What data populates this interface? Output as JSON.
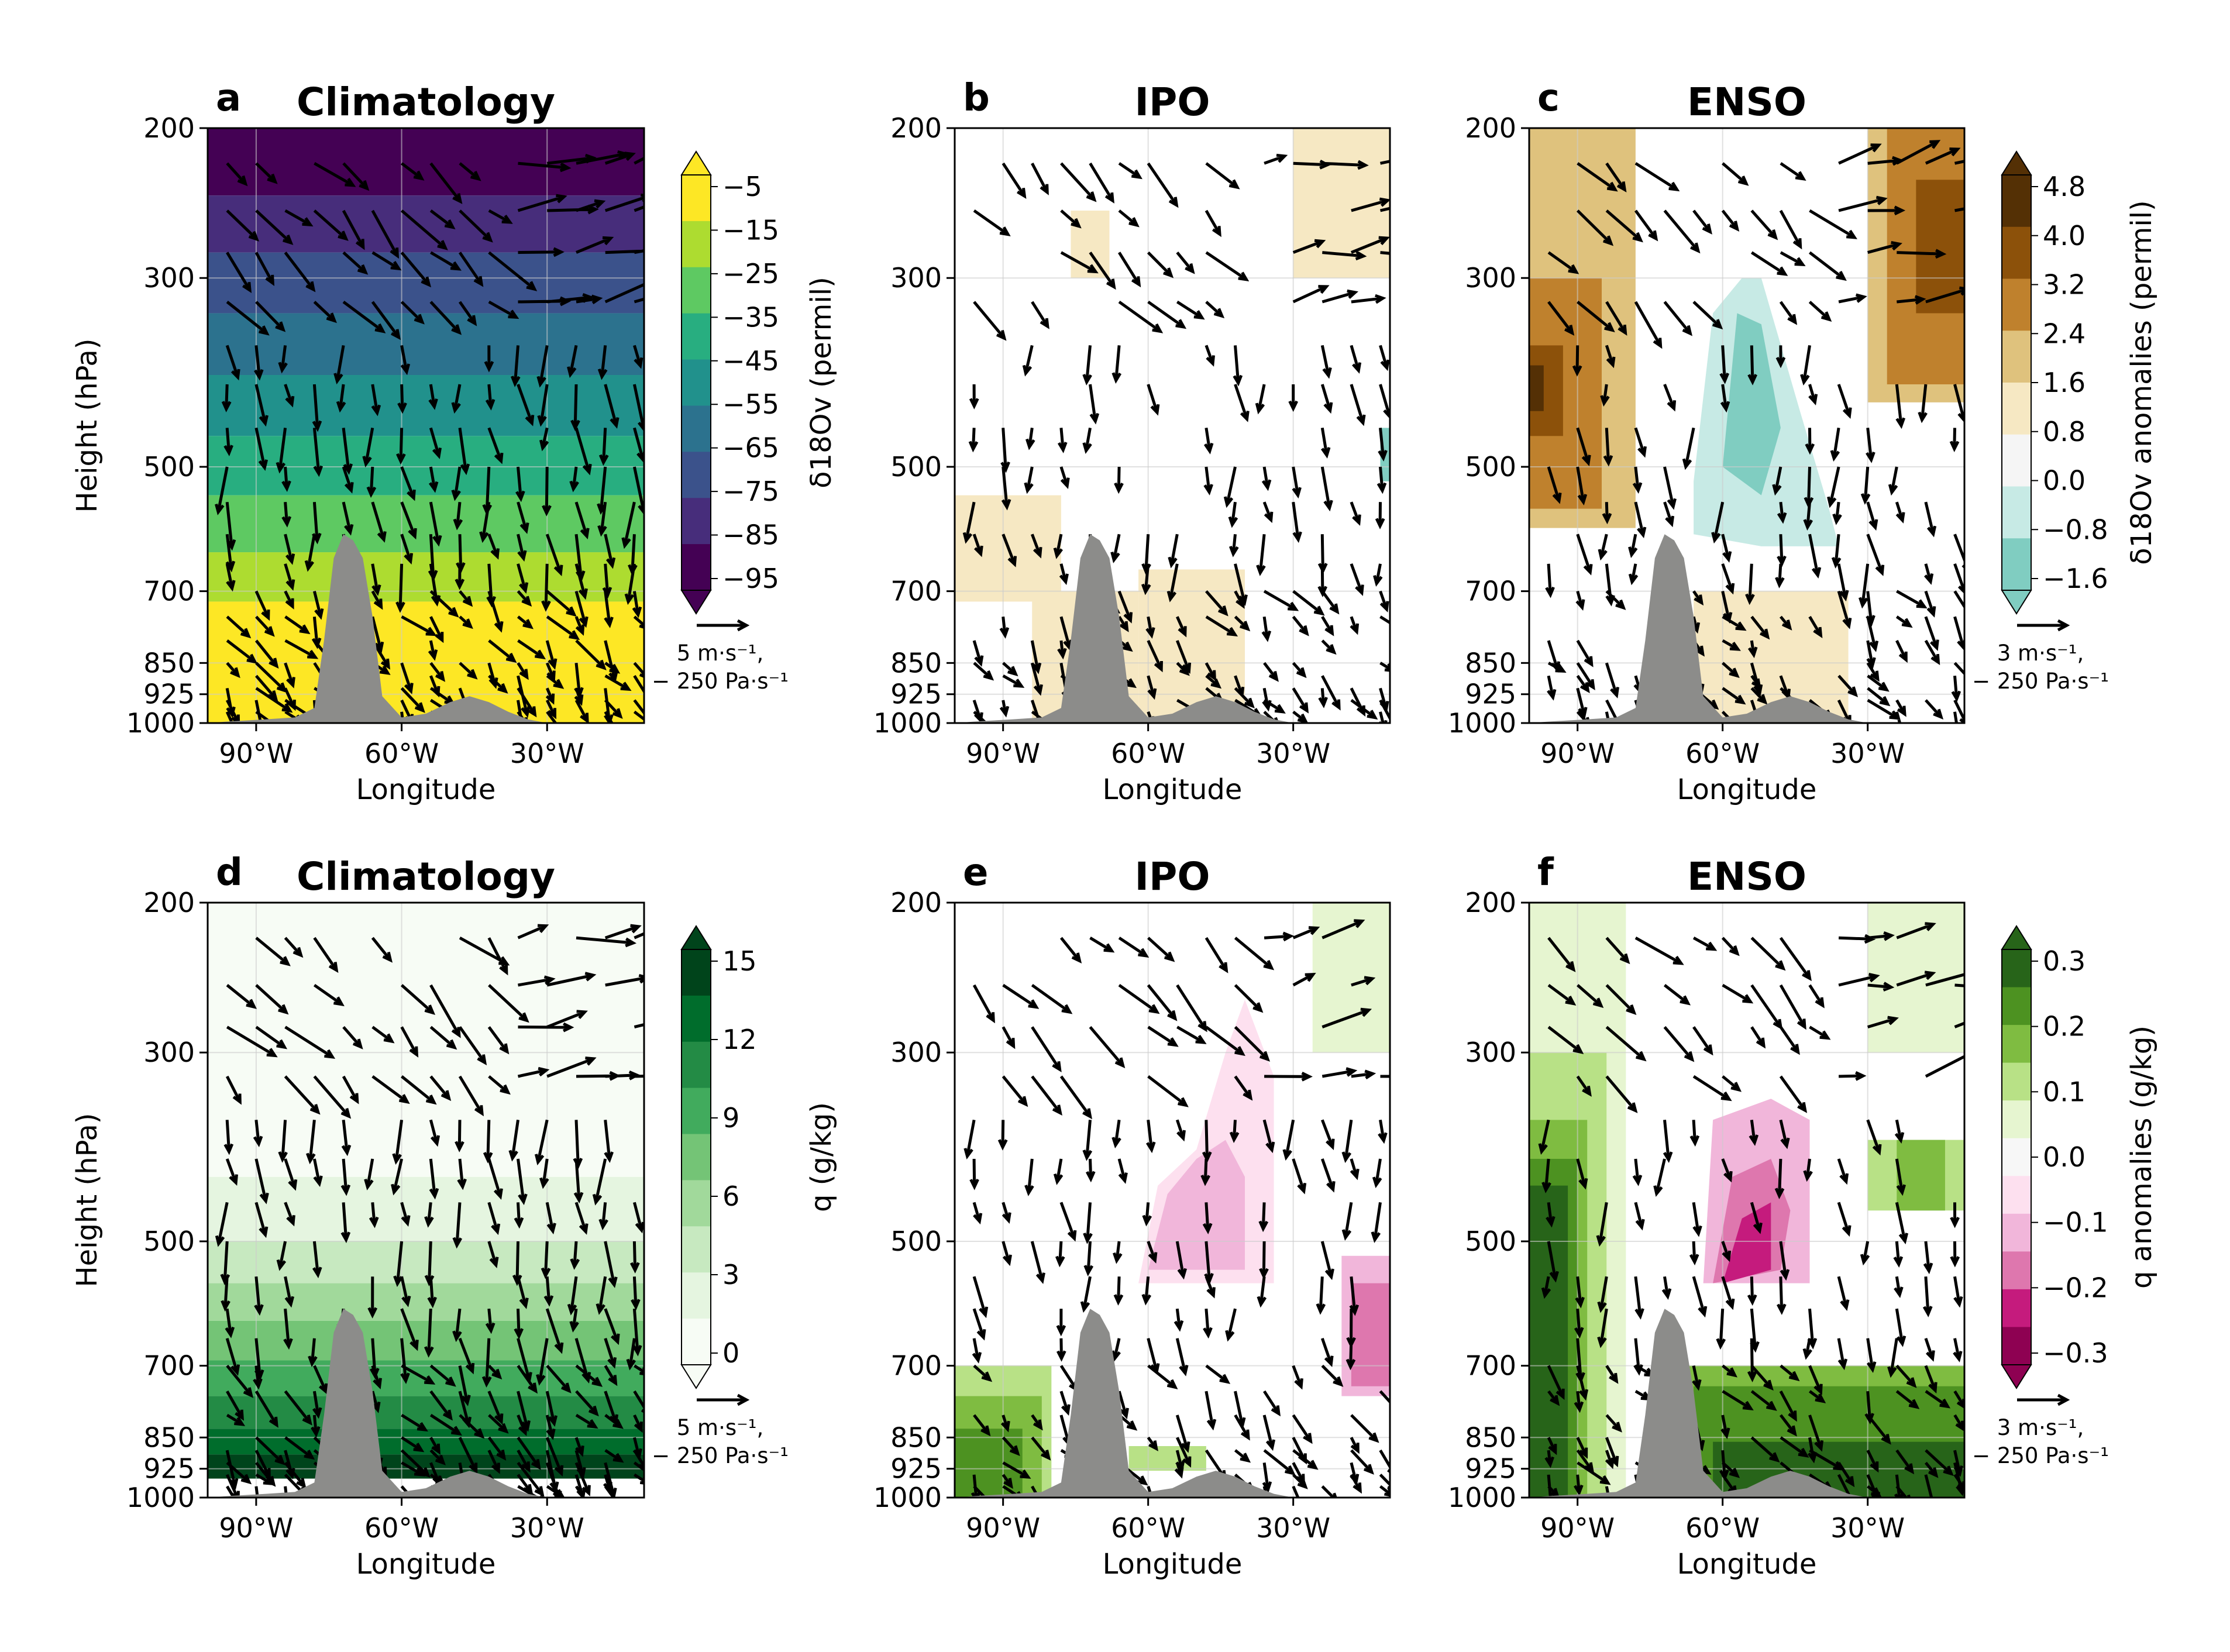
{
  "chart_data": [
    {
      "panel": "a",
      "type": "heatmap",
      "title": "Climatology",
      "xlabel": "Longitude",
      "ylabel": "Height (hPa)",
      "xticks": [
        "90°W",
        "60°W",
        "30°W"
      ],
      "yticks": [
        "200",
        "300",
        "500",
        "700",
        "850",
        "925",
        "1000"
      ],
      "xlim": [
        -100,
        -10
      ],
      "ylim": [
        1000,
        200
      ],
      "colorbar": {
        "label": "δ18Ov (permil)",
        "ticks": [
          "−5",
          "−15",
          "−25",
          "−35",
          "−45",
          "−55",
          "−65",
          "−75",
          "−85",
          "−95"
        ],
        "range": [
          -100,
          0
        ]
      },
      "quiver_key": {
        "line1": "5 m·s⁻¹,",
        "line2": "− 250 Pa·s⁻¹"
      },
      "values_at_1000_to_200_hPa": [
        -8,
        -30,
        -55,
        -95
      ]
    },
    {
      "panel": "b",
      "type": "heatmap",
      "title": "IPO",
      "xlabel": "Longitude",
      "xticks": [
        "90°W",
        "60°W",
        "30°W"
      ],
      "yticks": [
        "200",
        "300",
        "500",
        "700",
        "850",
        "925",
        "1000"
      ],
      "xlim": [
        -100,
        -10
      ],
      "ylim": [
        1000,
        200
      ]
    },
    {
      "panel": "c",
      "type": "heatmap",
      "title": "ENSO",
      "xlabel": "Longitude",
      "xticks": [
        "90°W",
        "60°W",
        "30°W"
      ],
      "yticks": [
        "200",
        "300",
        "500",
        "700",
        "850",
        "925",
        "1000"
      ],
      "xlim": [
        -100,
        -10
      ],
      "ylim": [
        1000,
        200
      ],
      "colorbar": {
        "label": "δ18Ov anomalies (permil)",
        "ticks": [
          "4.8",
          "4.0",
          "3.2",
          "2.4",
          "1.6",
          "0.8",
          "0.0",
          "−0.8",
          "−1.6"
        ],
        "range": [
          -2,
          5.2
        ]
      },
      "quiver_key": {
        "line1": "3 m·s⁻¹,",
        "line2": "− 250 Pa·s⁻¹"
      }
    },
    {
      "panel": "d",
      "type": "heatmap",
      "title": "Climatology",
      "xlabel": "Longitude",
      "ylabel": "Height (hPa)",
      "xticks": [
        "90°W",
        "60°W",
        "30°W"
      ],
      "yticks": [
        "200",
        "300",
        "500",
        "700",
        "850",
        "925",
        "1000"
      ],
      "xlim": [
        -100,
        -10
      ],
      "ylim": [
        1000,
        200
      ],
      "colorbar": {
        "label": "q (g/kg)",
        "ticks": [
          "15",
          "12",
          "9",
          "6",
          "3",
          "0"
        ],
        "range": [
          0,
          16.5
        ]
      },
      "quiver_key": {
        "line1": "5 m·s⁻¹,",
        "line2": "− 250 Pa·s⁻¹"
      },
      "values_at_1000_to_200_hPa": [
        16,
        9,
        3,
        0.2
      ]
    },
    {
      "panel": "e",
      "type": "heatmap",
      "title": "IPO",
      "xlabel": "Longitude",
      "xticks": [
        "90°W",
        "60°W",
        "30°W"
      ],
      "yticks": [
        "200",
        "300",
        "500",
        "700",
        "850",
        "925",
        "1000"
      ],
      "xlim": [
        -100,
        -10
      ],
      "ylim": [
        1000,
        200
      ]
    },
    {
      "panel": "f",
      "type": "heatmap",
      "title": "ENSO",
      "xlabel": "Longitude",
      "xticks": [
        "90°W",
        "60°W",
        "30°W"
      ],
      "yticks": [
        "200",
        "300",
        "500",
        "700",
        "850",
        "925",
        "1000"
      ],
      "xlim": [
        -100,
        -10
      ],
      "ylim": [
        1000,
        200
      ],
      "colorbar": {
        "label": "q anomalies (g/kg)",
        "ticks": [
          "0.3",
          "0.2",
          "0.1",
          "0.0",
          "−0.1",
          "−0.2",
          "−0.3"
        ],
        "range": [
          -0.3,
          0.3
        ]
      },
      "quiver_key": {
        "line1": "3 m·s⁻¹,",
        "line2": "− 250 Pa·s⁻¹"
      }
    }
  ],
  "colors": {
    "viridis": [
      "#440154",
      "#472d7b",
      "#3b528b",
      "#2c728e",
      "#21918c",
      "#28ae80",
      "#5ec962",
      "#addc30",
      "#fde725"
    ],
    "brbg_brown": [
      "#543005",
      "#8c510a",
      "#bf812d",
      "#dfc27d",
      "#f6e8c3"
    ],
    "brbg_teal": [
      "#c7eae5",
      "#80cdc1"
    ],
    "greens": [
      "#f7fcf5",
      "#e5f5e0",
      "#c7e9c0",
      "#a1d99b",
      "#74c476",
      "#41ab5d",
      "#238b45",
      "#006d2c",
      "#00441b"
    ],
    "piyg_green": [
      "#e6f5d0",
      "#b8e186",
      "#7fbc41",
      "#4d9221",
      "#276419"
    ],
    "piyg_pink": [
      "#fde0ef",
      "#f1b6da",
      "#de77ae",
      "#c51b7d",
      "#8e0152"
    ],
    "terrain": "#8c8c8a"
  }
}
